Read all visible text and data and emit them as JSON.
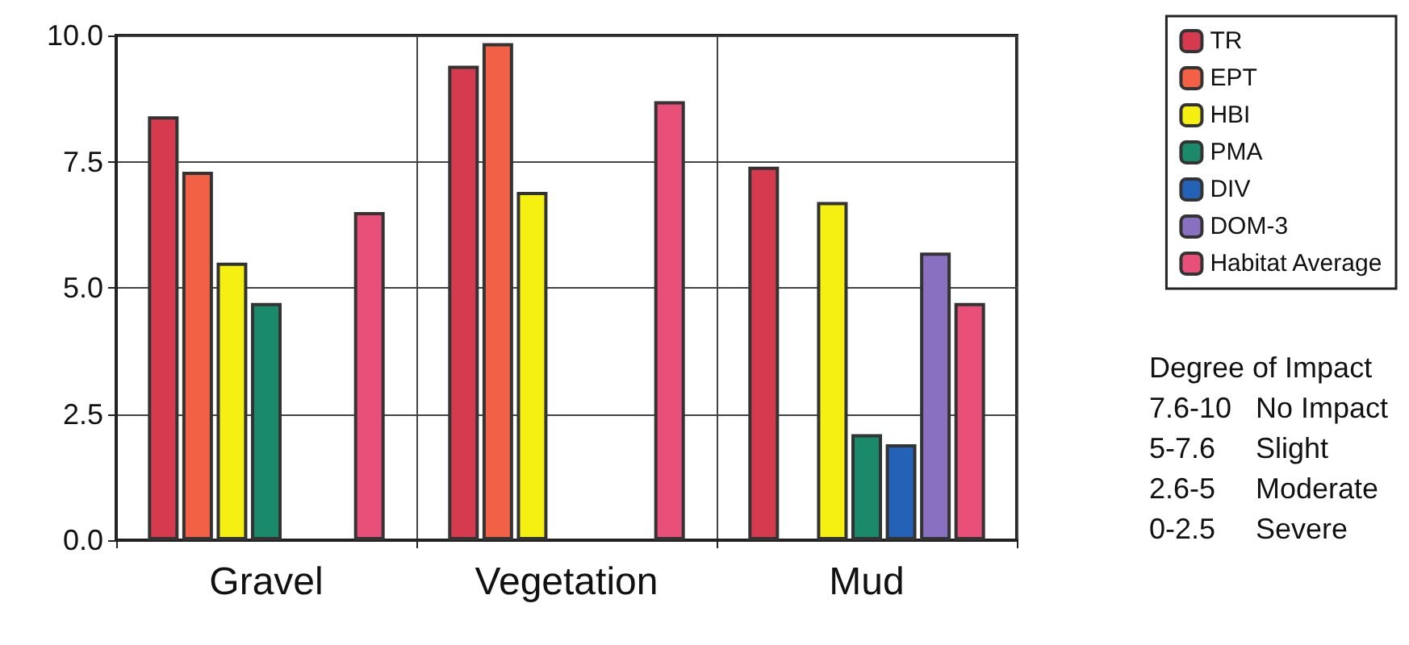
{
  "chart_data": {
    "type": "bar",
    "categories": [
      "Gravel",
      "Vegetation",
      "Mud"
    ],
    "series": [
      {
        "name": "TR",
        "color": "#d63a4e",
        "values": [
          8.4,
          9.4,
          7.4
        ]
      },
      {
        "name": "EPT",
        "color": "#f26046",
        "values": [
          7.3,
          9.85,
          null
        ]
      },
      {
        "name": "HBI",
        "color": "#f5ef12",
        "values": [
          5.5,
          6.9,
          6.7
        ]
      },
      {
        "name": "PMA",
        "color": "#1a8a6a",
        "values": [
          4.7,
          null,
          2.1
        ]
      },
      {
        "name": "DIV",
        "color": "#2462b8",
        "values": [
          null,
          null,
          1.9
        ]
      },
      {
        "name": "DOM-3",
        "color": "#8a70c0",
        "values": [
          null,
          null,
          5.7
        ]
      },
      {
        "name": "Habitat Average",
        "color": "#e8507a",
        "values": [
          6.5,
          8.7,
          4.7
        ]
      }
    ],
    "ylim": [
      0,
      10
    ],
    "yticks": [
      {
        "value": 0,
        "label": "0.0"
      },
      {
        "value": 2.5,
        "label": "2.5"
      },
      {
        "value": 5,
        "label": "5.0"
      },
      {
        "value": 7.5,
        "label": "7.5"
      },
      {
        "value": 10,
        "label": "10.0"
      }
    ],
    "grid": true,
    "legend": "right",
    "annotations": [
      "Degree of Impact",
      "7.6-10 No Impact",
      "5-7.6 Slight",
      "2.6-5 Moderate",
      "0-2.5 Severe"
    ]
  }
}
